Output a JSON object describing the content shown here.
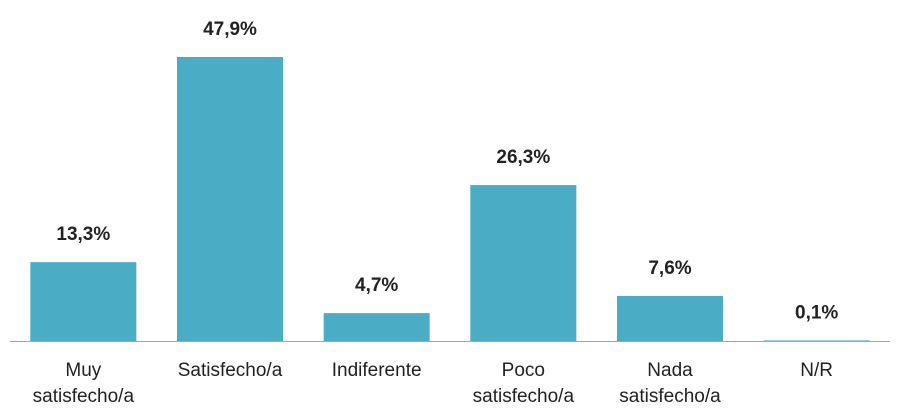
{
  "chart_data": {
    "type": "bar",
    "categories": [
      "Muy satisfecho/a",
      "Satisfecho/a",
      "Indiferente",
      "Poco satisfecho/a",
      "Nada satisfecho/a",
      "N/R"
    ],
    "values": [
      13.3,
      47.9,
      4.7,
      26.3,
      7.6,
      0.1
    ],
    "value_labels": [
      "13,3%",
      "47,9%",
      "4,7%",
      "26,3%",
      "7,6%",
      "0,1%"
    ],
    "color": "#4bacc6"
  }
}
